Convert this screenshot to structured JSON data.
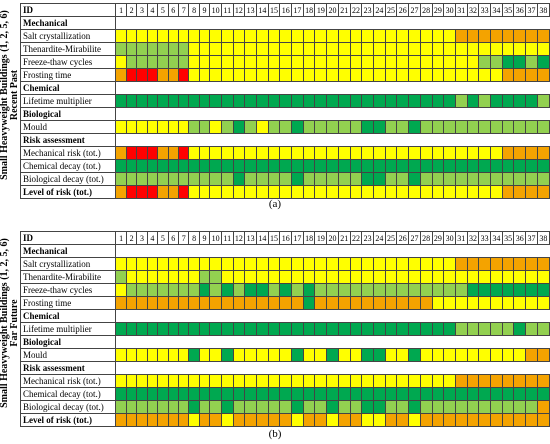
{
  "colors": {
    "R": "#ff0000",
    "O": "#f4a300",
    "Y": "#ffff00",
    "L": "#92d050",
    "G": "#00a850"
  },
  "chart_data": [
    {
      "type": "heatmap",
      "caption": "(a)",
      "side_line1": "Small Heavyweight Buildings (1, 2, 5, 6)",
      "side_line2": "Recent Past",
      "id_label": "ID",
      "columns": [
        "1",
        "2",
        "3",
        "4",
        "5",
        "6",
        "7",
        "8",
        "9",
        "10",
        "11",
        "12",
        "13",
        "14",
        "15",
        "16",
        "17",
        "18",
        "19",
        "20",
        "21",
        "22",
        "23",
        "24",
        "25",
        "26",
        "27",
        "28",
        "29",
        "30",
        "31",
        "32",
        "33",
        "34",
        "35",
        "36",
        "37",
        "38"
      ],
      "rows": [
        {
          "label": "Mechanical",
          "section": true
        },
        {
          "label": "Salt crystallization",
          "cells": "YYYYYYYYYYYYYYYYYYYYYYYYYYYYYYOOOOOOOO"
        },
        {
          "label": "Thenardite-Mirabilite",
          "cells": "LLLLLLLYYYYYYYYYYYYYYYYYYYYYYYYYYYYYYY"
        },
        {
          "label": "Freeze-thaw cycles",
          "cells": "YLLLLLLYYYYYYYYYYYYYYYYYYYYYYYYYLLGGLG"
        },
        {
          "label": "Frosting time",
          "cells": "ORRROORYYYYYYYYYYYYYYYYYYYYYYYYYYYOOOO"
        },
        {
          "label": "Chemical",
          "section": true
        },
        {
          "label": "Lifetime multiplier",
          "cells": "GGGGGGGGGGGGGGGGGGGGGGGGGGGGGGLGLGGGGL"
        },
        {
          "label": "Biological",
          "section": true
        },
        {
          "label": "Mould",
          "cells": "YYYYYYYLLYLGLYLLGLLLLLGGLLGLLLLLLLLLLL"
        },
        {
          "label": "Risk assessment",
          "section": true
        },
        {
          "label": "Mechanical risk (tot.)",
          "cells": "ORRROORYYYYYYYYYYYYYYYYYYYYYYYYYYYOOOO",
          "total": true
        },
        {
          "label": "Chemical decay (tot.)",
          "cells": "GGGGGGGGGGGGGGGGGGGGGGGGGGGGGGGGGGGGGG",
          "total": true
        },
        {
          "label": "Biological decay (tot.)",
          "cells": "LLLLLLLLLLLGLLLLGLLLLLGGLLGLLLLLLLLLLL",
          "total": true
        },
        {
          "label": "Level of risk (tot.)",
          "cells": "ORRROORYYYYYYYYYYYYYYYYYYYYYYYYYYYOOOO",
          "total": true,
          "bold": true
        }
      ]
    },
    {
      "type": "heatmap",
      "caption": "(b)",
      "side_line1": "Small Heavyweight Buildings (1, 2, 5, 6)",
      "side_line2": "Far Future",
      "id_label": "ID",
      "columns": [
        "1",
        "2",
        "3",
        "4",
        "5",
        "6",
        "7",
        "8",
        "9",
        "10",
        "11",
        "12",
        "13",
        "14",
        "15",
        "16",
        "17",
        "18",
        "19",
        "20",
        "21",
        "22",
        "23",
        "24",
        "25",
        "26",
        "27",
        "28",
        "29",
        "30",
        "31",
        "32",
        "33",
        "34",
        "35",
        "36",
        "37",
        "38"
      ],
      "rows": [
        {
          "label": "Mechanical",
          "section": true
        },
        {
          "label": "Salt crystallization",
          "cells": "YYYYYYYYYYYYYYYYYYYYYYYYYYYYYYOOOOOOOO"
        },
        {
          "label": "Thenardite-Mirabilite",
          "cells": "LYYYYYYYLLYYYYYYYYYYYYYYYYYYYYYYYYYYYY"
        },
        {
          "label": "Freeze-thaw cycles",
          "cells": "YLLLLLLLGLGLGGLGLGLLLLLLLLLLLLLGGGGGGG"
        },
        {
          "label": "Frosting time",
          "cells": "OOOOOOOOOOOOOOOOOGOOOOOOOOOOYYYYYYYYYY"
        },
        {
          "label": "Chemical",
          "section": true
        },
        {
          "label": "Lifetime multiplier",
          "cells": "GGGGGGGGGGGGGGGGGGGGGGGGGGGGGGLLLLLGLL"
        },
        {
          "label": "Biological",
          "section": true
        },
        {
          "label": "Mould",
          "cells": "YYYYYYYGYYGYYYYYGYYGYYGGYYGYYYYYYYYYOO"
        },
        {
          "label": "Risk assessment",
          "section": true
        },
        {
          "label": "Mechanical risk (tot.)",
          "cells": "YYYYYYYYYYYYYYYYYYYYYYYYYYYYYYOOOOOOOO",
          "total": true
        },
        {
          "label": "Chemical decay (tot.)",
          "cells": "GGGGGGGGGGGGGGGGGGGGGGGGGGGGGGGGGGGGGG",
          "total": true
        },
        {
          "label": "Biological decay (tot.)",
          "cells": "LLLLLLLGLLGLLLLLGLLGLLGGLLGLLLLLLLLLLO",
          "total": true
        },
        {
          "label": "Level of risk (tot.)",
          "cells": "OOOOOOOYOOYOOOOOYOOYOOYYOOYOOOOOOOOOOO",
          "total": true,
          "bold": true
        }
      ]
    }
  ]
}
